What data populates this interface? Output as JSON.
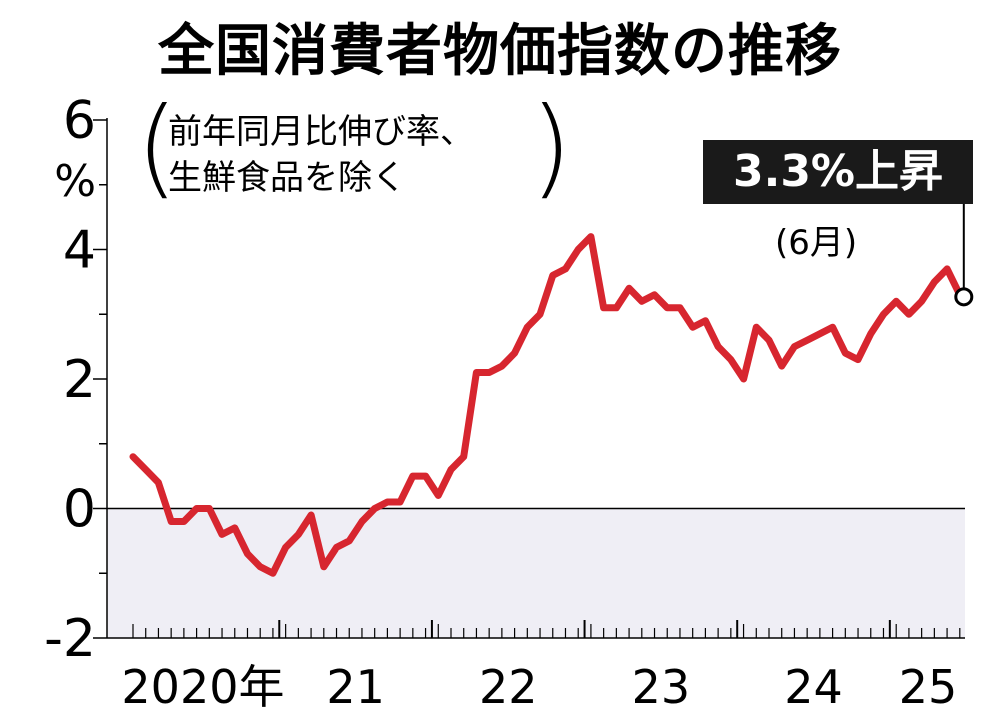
{
  "title": "全国消費者物価指数の推移",
  "note": {
    "line1": "前年同月比伸び率、",
    "line2": "生鮮食品を除く"
  },
  "callout": {
    "value": "3.3%上昇",
    "month": "(6月)"
  },
  "colors": {
    "line": "#d7262f",
    "negative_area": "#efeef5",
    "axis": "#000000",
    "callout_bg": "#1a1a1a"
  },
  "chart_data": {
    "type": "line",
    "title": "全国消費者物価指数の推移",
    "ylabel": "%",
    "ylim": [
      -2,
      6
    ],
    "y_ticks": [
      -2,
      0,
      2,
      4,
      6
    ],
    "y_tick_labels": [
      "-2",
      "0",
      "2",
      "4",
      "6"
    ],
    "x_tick_labels": [
      "2020年",
      "21",
      "22",
      "23",
      "24",
      "25"
    ],
    "x_start": "2020-01",
    "x_end": "2025-06",
    "series": [
      {
        "values": [
          0.8,
          0.6,
          0.4,
          -0.2,
          -0.2,
          0.0,
          0.0,
          -0.4,
          -0.3,
          -0.7,
          -0.9,
          -1.0,
          -0.6,
          -0.4,
          -0.1,
          -0.9,
          -0.6,
          -0.5,
          -0.2,
          0.0,
          0.1,
          0.1,
          0.5,
          0.5,
          0.2,
          0.6,
          0.8,
          2.1,
          2.1,
          2.2,
          2.4,
          2.8,
          3.0,
          3.6,
          3.7,
          4.0,
          4.2,
          3.1,
          3.1,
          3.4,
          3.2,
          3.3,
          3.1,
          3.1,
          2.8,
          2.9,
          2.5,
          2.3,
          2.0,
          2.8,
          2.6,
          2.2,
          2.5,
          2.6,
          2.7,
          2.8,
          2.4,
          2.3,
          2.7,
          3.0,
          3.2,
          3.0,
          3.2,
          3.5,
          3.7,
          3.3
        ]
      }
    ],
    "annotation": {
      "label": "3.3%上昇",
      "sublabel": "(6月)",
      "value": 3.3
    }
  }
}
